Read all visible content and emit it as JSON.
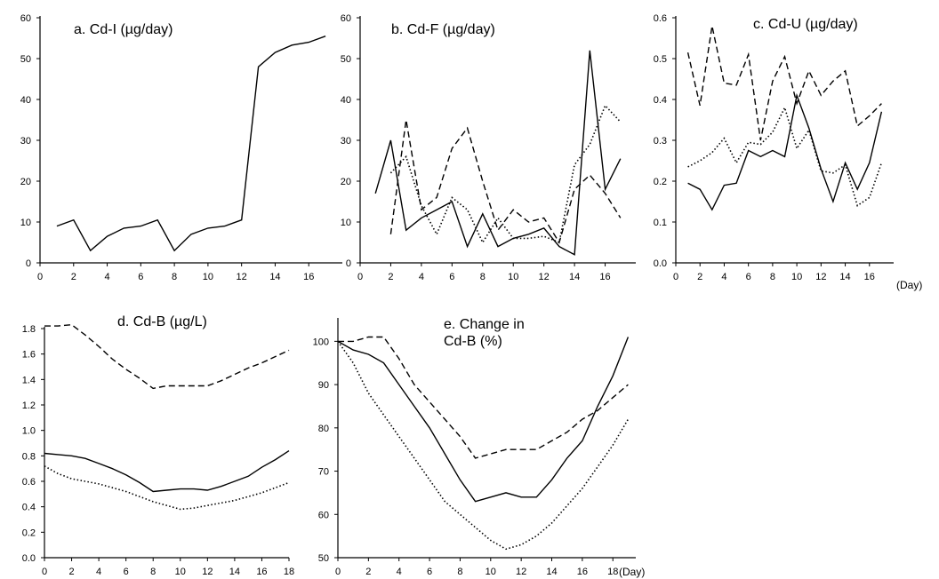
{
  "figure": {
    "xunit": "(Day)"
  },
  "chart_data": [
    {
      "id": "a",
      "type": "line",
      "title": "a. Cd-I (µg/day)",
      "xlabel": "",
      "ylabel": "",
      "xlim": [
        0,
        18
      ],
      "ylim": [
        0,
        60
      ],
      "xticks": [
        0,
        2,
        4,
        6,
        8,
        10,
        12,
        14,
        16
      ],
      "yticks": [
        0,
        10,
        20,
        30,
        40,
        50,
        60
      ],
      "ydecimals": 0,
      "grid": false,
      "series": [
        {
          "style": "solid",
          "x": [
            1,
            2,
            3,
            4,
            5,
            6,
            7,
            8,
            9,
            10,
            11,
            12,
            13,
            14,
            15,
            16,
            17
          ],
          "y": [
            9,
            10.5,
            3,
            6.5,
            8.5,
            9,
            10.5,
            3,
            7,
            8.5,
            9,
            10.5,
            48,
            51.5,
            53.3,
            54,
            55.5
          ]
        }
      ]
    },
    {
      "id": "b",
      "type": "line",
      "title": "b. Cd-F (µg/day)",
      "xlabel": "",
      "ylabel": "",
      "xlim": [
        0,
        18
      ],
      "ylim": [
        0,
        60
      ],
      "xticks": [
        0,
        2,
        4,
        6,
        8,
        10,
        12,
        14,
        16
      ],
      "yticks": [
        0,
        10,
        20,
        30,
        40,
        50,
        60
      ],
      "ydecimals": 0,
      "grid": false,
      "series": [
        {
          "style": "solid",
          "x": [
            1,
            2,
            3,
            4,
            5,
            6,
            7,
            8,
            9,
            10,
            11,
            12,
            13,
            14,
            15,
            16,
            17
          ],
          "y": [
            17,
            30,
            8,
            11,
            13,
            15,
            4,
            12,
            4,
            6,
            7,
            8.5,
            4,
            2,
            52,
            18,
            25.5
          ]
        },
        {
          "style": "dashed",
          "x": [
            2,
            3,
            4,
            5,
            6,
            7,
            8,
            9,
            10,
            11,
            12,
            13,
            14,
            15,
            16,
            17
          ],
          "y": [
            7,
            35,
            13,
            16,
            28,
            33,
            20,
            8,
            13,
            10,
            11,
            5,
            18,
            21.5,
            17,
            11
          ]
        },
        {
          "style": "dotted",
          "x": [
            2,
            3,
            4,
            5,
            6,
            7,
            8,
            9,
            10,
            11,
            12,
            13,
            14,
            15,
            16,
            17
          ],
          "y": [
            22,
            26,
            14,
            7,
            16,
            13,
            5,
            11,
            6,
            6,
            6.5,
            5,
            24,
            29,
            38.5,
            34.5
          ]
        }
      ]
    },
    {
      "id": "c",
      "type": "line",
      "title": "c. Cd-U (µg/day)",
      "xlabel": "(Day)",
      "ylabel": "",
      "xlim": [
        0,
        18
      ],
      "ylim": [
        0,
        0.6
      ],
      "xticks": [
        0,
        2,
        4,
        6,
        8,
        10,
        12,
        14,
        16
      ],
      "yticks": [
        0,
        0.1,
        0.2,
        0.3,
        0.4,
        0.5,
        0.6
      ],
      "ydecimals": 1,
      "grid": false,
      "series": [
        {
          "style": "solid",
          "x": [
            1,
            2,
            3,
            4,
            5,
            6,
            7,
            8,
            9,
            10,
            11,
            12,
            13,
            14,
            15,
            16,
            17
          ],
          "y": [
            0.195,
            0.18,
            0.13,
            0.19,
            0.195,
            0.275,
            0.26,
            0.275,
            0.26,
            0.41,
            0.33,
            0.23,
            0.15,
            0.245,
            0.18,
            0.245,
            0.37
          ]
        },
        {
          "style": "dashed",
          "x": [
            1,
            2,
            3,
            4,
            5,
            6,
            7,
            8,
            9,
            10,
            11,
            12,
            13,
            14,
            15,
            16,
            17
          ],
          "y": [
            0.515,
            0.385,
            0.58,
            0.44,
            0.435,
            0.51,
            0.3,
            0.445,
            0.505,
            0.39,
            0.47,
            0.41,
            0.445,
            0.47,
            0.335,
            0.36,
            0.39
          ]
        },
        {
          "style": "dotted",
          "x": [
            1,
            2,
            3,
            4,
            5,
            6,
            7,
            8,
            9,
            10,
            11,
            12,
            13,
            14,
            15,
            16,
            17
          ],
          "y": [
            0.235,
            0.25,
            0.27,
            0.305,
            0.245,
            0.295,
            0.29,
            0.32,
            0.38,
            0.28,
            0.325,
            0.225,
            0.22,
            0.24,
            0.14,
            0.16,
            0.245
          ]
        }
      ]
    },
    {
      "id": "d",
      "type": "line",
      "title": "d. Cd-B (µg/L)",
      "xlabel": "",
      "ylabel": "",
      "xlim": [
        0,
        18
      ],
      "ylim": [
        0,
        1.8
      ],
      "xticks": [
        0,
        2,
        4,
        6,
        8,
        10,
        12,
        14,
        16,
        18
      ],
      "yticks": [
        0,
        0.2,
        0.4,
        0.6,
        0.8,
        1.0,
        1.2,
        1.4,
        1.6,
        1.8
      ],
      "ydecimals": 1,
      "grid": false,
      "series": [
        {
          "style": "solid",
          "x": [
            0,
            1,
            2,
            3,
            4,
            5,
            6,
            7,
            8,
            9,
            10,
            11,
            12,
            13,
            14,
            15,
            16,
            17,
            18
          ],
          "y": [
            0.82,
            0.81,
            0.8,
            0.78,
            0.74,
            0.7,
            0.65,
            0.59,
            0.52,
            0.53,
            0.54,
            0.54,
            0.53,
            0.56,
            0.6,
            0.64,
            0.71,
            0.77,
            0.84
          ]
        },
        {
          "style": "dashed",
          "x": [
            0,
            1,
            2,
            3,
            4,
            5,
            6,
            7,
            8,
            9,
            10,
            11,
            12,
            13,
            14,
            15,
            16,
            17,
            18
          ],
          "y": [
            1.82,
            1.82,
            1.83,
            1.75,
            1.66,
            1.56,
            1.48,
            1.41,
            1.33,
            1.35,
            1.35,
            1.35,
            1.35,
            1.39,
            1.44,
            1.49,
            1.53,
            1.58,
            1.63
          ]
        },
        {
          "style": "dotted",
          "x": [
            0,
            1,
            2,
            3,
            4,
            5,
            6,
            7,
            8,
            9,
            10,
            11,
            12,
            13,
            14,
            15,
            16,
            17,
            18
          ],
          "y": [
            0.72,
            0.66,
            0.62,
            0.6,
            0.58,
            0.55,
            0.52,
            0.48,
            0.44,
            0.41,
            0.38,
            0.39,
            0.41,
            0.43,
            0.45,
            0.48,
            0.51,
            0.55,
            0.59
          ]
        }
      ]
    },
    {
      "id": "e",
      "type": "line",
      "title": "e. Change in Cd-B (%)",
      "title_lines": [
        "e. Change in",
        "Cd-B (%)"
      ],
      "xlabel": "(Day)",
      "ylabel": "",
      "xlim": [
        0,
        19.5
      ],
      "ylim": [
        50,
        105
      ],
      "xticks": [
        0,
        2,
        4,
        6,
        8,
        10,
        12,
        14,
        16,
        18
      ],
      "yticks": [
        50,
        60,
        70,
        80,
        90,
        100
      ],
      "ydecimals": 0,
      "grid": false,
      "series": [
        {
          "style": "solid",
          "x": [
            0,
            1,
            2,
            3,
            4,
            5,
            6,
            7,
            8,
            9,
            10,
            11,
            12,
            13,
            14,
            15,
            16,
            17,
            18,
            19
          ],
          "y": [
            100,
            98,
            97,
            95,
            90,
            85,
            80,
            74,
            68,
            63,
            64,
            65,
            64,
            64,
            68,
            73,
            77,
            85,
            92,
            101
          ]
        },
        {
          "style": "dashed",
          "x": [
            0,
            1,
            2,
            3,
            4,
            5,
            6,
            7,
            8,
            9,
            10,
            11,
            12,
            13,
            14,
            15,
            16,
            17,
            18,
            19
          ],
          "y": [
            100,
            100,
            101,
            101,
            96,
            90,
            86,
            82,
            78,
            73,
            74,
            75,
            75,
            75,
            77,
            79,
            82,
            84,
            87,
            90
          ]
        },
        {
          "style": "dotted",
          "x": [
            0,
            1,
            2,
            3,
            4,
            5,
            6,
            7,
            8,
            9,
            10,
            11,
            12,
            13,
            14,
            15,
            16,
            17,
            18,
            19
          ],
          "y": [
            100,
            95,
            88,
            83,
            78,
            73,
            68,
            63,
            60,
            57,
            54,
            52,
            53,
            55,
            58,
            62,
            66,
            71,
            76,
            82
          ]
        }
      ]
    }
  ]
}
